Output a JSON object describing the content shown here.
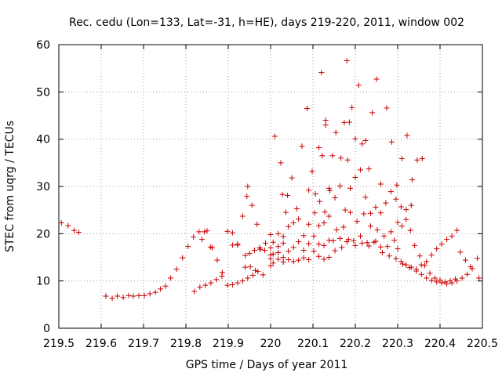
{
  "chart_data": {
    "type": "scatter",
    "title": "Rec. cedu (Lon=133, Lat=-31, h=HE), days 219-220, 2011, window 002",
    "xlabel": "GPS time / Days of year 2011",
    "ylabel": "STEC from uqrg / TECUs",
    "xlim": [
      219.5,
      220.5
    ],
    "ylim": [
      0,
      60
    ],
    "xticks": [
      219.5,
      219.6,
      219.7,
      219.8,
      219.9,
      220.0,
      220.1,
      220.2,
      220.3,
      220.4,
      220.5
    ],
    "xtick_labels": [
      "219.5",
      "219.6",
      "219.7",
      "219.8",
      "219.9",
      "220",
      "220.1",
      "220.2",
      "220.3",
      "220.4",
      "220.5"
    ],
    "yticks": [
      0,
      10,
      20,
      30,
      40,
      50,
      60
    ],
    "ytick_labels": [
      "0",
      "10",
      "20",
      "30",
      "40",
      "50",
      "60"
    ],
    "grid": true,
    "marker": "+",
    "color": "#cc0000",
    "series": [
      {
        "name": "STEC",
        "points": [
          [
            219.506,
            22.3
          ],
          [
            219.522,
            21.7
          ],
          [
            219.536,
            20.7
          ],
          [
            219.547,
            20.3
          ],
          [
            219.611,
            6.8
          ],
          [
            219.626,
            6.3
          ],
          [
            219.638,
            6.8
          ],
          [
            219.652,
            6.5
          ],
          [
            219.665,
            6.9
          ],
          [
            219.676,
            6.8
          ],
          [
            219.689,
            6.9
          ],
          [
            219.702,
            6.9
          ],
          [
            219.715,
            7.3
          ],
          [
            219.728,
            7.6
          ],
          [
            219.74,
            8.3
          ],
          [
            219.752,
            8.9
          ],
          [
            219.764,
            10.6
          ],
          [
            219.778,
            12.5
          ],
          [
            219.792,
            14.9
          ],
          [
            219.805,
            17.3
          ],
          [
            219.818,
            19.3
          ],
          [
            219.831,
            20.4
          ],
          [
            219.844,
            20.4
          ],
          [
            219.858,
            17.2
          ],
          [
            219.82,
            7.8
          ],
          [
            219.833,
            8.7
          ],
          [
            219.846,
            9.1
          ],
          [
            219.859,
            9.6
          ],
          [
            219.872,
            10.3
          ],
          [
            219.885,
            11.0
          ],
          [
            219.898,
            9.1
          ],
          [
            219.91,
            9.2
          ],
          [
            219.922,
            9.6
          ],
          [
            219.934,
            10.0
          ],
          [
            219.946,
            10.6
          ],
          [
            219.958,
            11.2
          ],
          [
            219.97,
            12.0
          ],
          [
            219.982,
            11.3
          ],
          [
            219.838,
            18.8
          ],
          [
            219.85,
            20.6
          ],
          [
            219.862,
            17.0
          ],
          [
            219.874,
            14.4
          ],
          [
            219.886,
            11.8
          ],
          [
            219.898,
            20.5
          ],
          [
            219.91,
            20.2
          ],
          [
            219.922,
            17.6
          ],
          [
            219.934,
            23.7
          ],
          [
            219.944,
            27.9
          ],
          [
            219.946,
            30.0
          ],
          [
            219.956,
            26.0
          ],
          [
            219.968,
            22.0
          ],
          [
            219.91,
            17.6
          ],
          [
            219.922,
            17.8
          ],
          [
            219.94,
            15.4
          ],
          [
            219.95,
            15.8
          ],
          [
            219.962,
            16.5
          ],
          [
            219.974,
            17.0
          ],
          [
            219.986,
            16.5
          ],
          [
            219.94,
            12.9
          ],
          [
            219.952,
            13.0
          ],
          [
            219.964,
            12.2
          ],
          [
            219.976,
            16.7
          ],
          [
            219.988,
            18.0
          ],
          [
            220.0,
            13.2
          ],
          [
            220.0,
            14.7
          ],
          [
            220.0,
            15.5
          ],
          [
            220.0,
            17.0
          ],
          [
            220.0,
            19.8
          ],
          [
            220.006,
            13.8
          ],
          [
            220.006,
            15.7
          ],
          [
            220.006,
            18.2
          ],
          [
            220.018,
            14.6
          ],
          [
            220.018,
            16.0
          ],
          [
            220.018,
            17.3
          ],
          [
            220.018,
            20.0
          ],
          [
            220.03,
            14.0
          ],
          [
            220.03,
            15.0
          ],
          [
            220.03,
            18.0
          ],
          [
            220.03,
            19.4
          ],
          [
            220.042,
            14.5
          ],
          [
            220.042,
            16.3
          ],
          [
            220.042,
            21.5
          ],
          [
            220.054,
            14.1
          ],
          [
            220.054,
            17.1
          ],
          [
            220.054,
            22.3
          ],
          [
            220.066,
            14.4
          ],
          [
            220.066,
            18.3
          ],
          [
            220.066,
            23.1
          ],
          [
            220.078,
            14.9
          ],
          [
            220.078,
            16.5
          ],
          [
            220.078,
            19.6
          ],
          [
            220.09,
            14.5
          ],
          [
            220.09,
            17.9
          ],
          [
            220.09,
            22.0
          ],
          [
            220.102,
            16.3
          ],
          [
            220.102,
            19.5
          ],
          [
            220.114,
            15.2
          ],
          [
            220.114,
            17.8
          ],
          [
            220.114,
            21.7
          ],
          [
            220.126,
            14.6
          ],
          [
            220.126,
            17.5
          ],
          [
            220.126,
            22.3
          ],
          [
            220.138,
            15.0
          ],
          [
            220.138,
            18.6
          ],
          [
            220.138,
            23.7
          ],
          [
            220.01,
            40.6
          ],
          [
            220.024,
            35.0
          ],
          [
            220.028,
            28.3
          ],
          [
            220.036,
            24.5
          ],
          [
            220.04,
            28.1
          ],
          [
            220.05,
            31.8
          ],
          [
            220.062,
            25.3
          ],
          [
            220.074,
            38.5
          ],
          [
            220.086,
            46.5
          ],
          [
            220.09,
            29.2
          ],
          [
            220.098,
            33.2
          ],
          [
            220.106,
            28.4
          ],
          [
            220.114,
            38.2
          ],
          [
            220.122,
            36.5
          ],
          [
            220.13,
            44.0
          ],
          [
            220.13,
            43.0
          ],
          [
            220.138,
            29.6
          ],
          [
            220.146,
            36.5
          ],
          [
            220.154,
            41.4
          ],
          [
            220.166,
            36.0
          ],
          [
            220.174,
            43.5
          ],
          [
            220.18,
            56.6
          ],
          [
            220.182,
            35.6
          ],
          [
            220.186,
            43.6
          ],
          [
            220.192,
            46.7
          ],
          [
            220.2,
            40.1
          ],
          [
            220.208,
            51.4
          ],
          [
            220.216,
            39.0
          ],
          [
            220.224,
            39.7
          ],
          [
            220.232,
            33.7
          ],
          [
            220.24,
            45.6
          ],
          [
            220.25,
            52.7
          ],
          [
            220.26,
            30.5
          ],
          [
            220.274,
            46.6
          ],
          [
            220.286,
            39.4
          ],
          [
            220.298,
            30.3
          ],
          [
            220.31,
            35.9
          ],
          [
            220.322,
            40.8
          ],
          [
            220.334,
            31.4
          ],
          [
            220.346,
            35.6
          ],
          [
            220.358,
            35.9
          ],
          [
            220.12,
            54.1
          ],
          [
            220.104,
            24.4
          ],
          [
            220.116,
            26.8
          ],
          [
            220.128,
            24.6
          ],
          [
            220.14,
            29.1
          ],
          [
            220.152,
            27.6
          ],
          [
            220.164,
            30.1
          ],
          [
            220.176,
            25.0
          ],
          [
            220.188,
            29.6
          ],
          [
            220.2,
            31.9
          ],
          [
            220.212,
            33.5
          ],
          [
            220.224,
            27.7
          ],
          [
            220.236,
            24.3
          ],
          [
            220.248,
            25.6
          ],
          [
            220.26,
            24.4
          ],
          [
            220.272,
            26.5
          ],
          [
            220.284,
            28.9
          ],
          [
            220.296,
            27.3
          ],
          [
            220.308,
            25.7
          ],
          [
            220.32,
            23.0
          ],
          [
            220.332,
            26.0
          ],
          [
            220.148,
            18.5
          ],
          [
            220.156,
            20.8
          ],
          [
            220.164,
            19.0
          ],
          [
            220.172,
            21.4
          ],
          [
            220.18,
            18.3
          ],
          [
            220.188,
            24.5
          ],
          [
            220.196,
            18.5
          ],
          [
            220.204,
            22.6
          ],
          [
            220.212,
            19.5
          ],
          [
            220.22,
            24.2
          ],
          [
            220.228,
            18.1
          ],
          [
            220.236,
            21.6
          ],
          [
            220.244,
            18.2
          ],
          [
            220.252,
            20.8
          ],
          [
            220.26,
            17.2
          ],
          [
            220.268,
            19.5
          ],
          [
            220.276,
            17.3
          ],
          [
            220.284,
            20.4
          ],
          [
            220.292,
            18.6
          ],
          [
            220.3,
            22.4
          ],
          [
            220.152,
            16.4
          ],
          [
            220.168,
            17.1
          ],
          [
            220.184,
            18.8
          ],
          [
            220.2,
            17.5
          ],
          [
            220.216,
            18.0
          ],
          [
            220.232,
            17.4
          ],
          [
            220.248,
            18.4
          ],
          [
            220.264,
            16.0
          ],
          [
            220.28,
            15.3
          ],
          [
            220.296,
            14.7
          ],
          [
            220.312,
            13.6
          ],
          [
            220.328,
            12.8
          ],
          [
            220.344,
            12.5
          ],
          [
            220.356,
            13.4
          ],
          [
            220.368,
            14.1
          ],
          [
            220.38,
            15.5
          ],
          [
            220.392,
            16.8
          ],
          [
            220.404,
            17.8
          ],
          [
            220.416,
            18.8
          ],
          [
            220.428,
            19.5
          ],
          [
            220.44,
            20.7
          ],
          [
            220.308,
            14.1
          ],
          [
            220.32,
            13.4
          ],
          [
            220.332,
            12.9
          ],
          [
            220.344,
            12.1
          ],
          [
            220.356,
            11.4
          ],
          [
            220.368,
            10.6
          ],
          [
            220.38,
            10.1
          ],
          [
            220.392,
            9.8
          ],
          [
            220.404,
            9.6
          ],
          [
            220.416,
            9.4
          ],
          [
            220.428,
            9.6
          ],
          [
            220.44,
            10.0
          ],
          [
            220.452,
            10.6
          ],
          [
            220.464,
            11.4
          ],
          [
            220.476,
            12.6
          ],
          [
            220.488,
            14.8
          ],
          [
            220.492,
            10.6
          ],
          [
            220.3,
            16.8
          ],
          [
            220.31,
            21.6
          ],
          [
            220.32,
            25.1
          ],
          [
            220.33,
            20.7
          ],
          [
            220.34,
            17.5
          ],
          [
            220.352,
            15.3
          ],
          [
            220.364,
            13.3
          ],
          [
            220.376,
            11.6
          ],
          [
            220.388,
            10.6
          ],
          [
            220.4,
            10.2
          ],
          [
            220.412,
            9.8
          ],
          [
            220.424,
            10.0
          ],
          [
            220.436,
            10.4
          ],
          [
            220.448,
            16.1
          ],
          [
            220.46,
            14.4
          ],
          [
            220.472,
            13.0
          ]
        ]
      }
    ]
  }
}
